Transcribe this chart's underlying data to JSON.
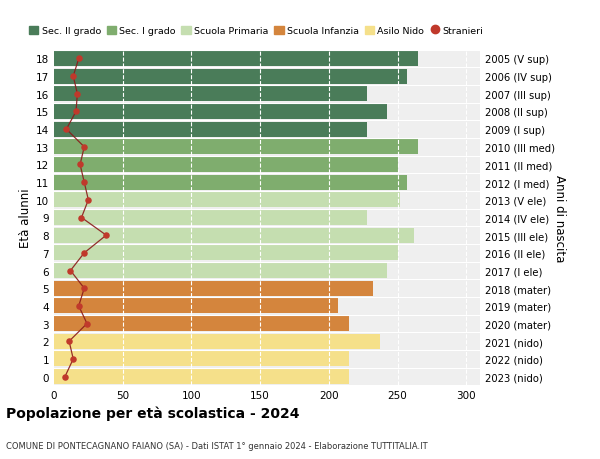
{
  "ages": [
    18,
    17,
    16,
    15,
    14,
    13,
    12,
    11,
    10,
    9,
    8,
    7,
    6,
    5,
    4,
    3,
    2,
    1,
    0
  ],
  "right_labels": [
    "2005 (V sup)",
    "2006 (IV sup)",
    "2007 (III sup)",
    "2008 (II sup)",
    "2009 (I sup)",
    "2010 (III med)",
    "2011 (II med)",
    "2012 (I med)",
    "2013 (V ele)",
    "2014 (IV ele)",
    "2015 (III ele)",
    "2016 (II ele)",
    "2017 (I ele)",
    "2018 (mater)",
    "2019 (mater)",
    "2020 (mater)",
    "2021 (nido)",
    "2022 (nido)",
    "2023 (nido)"
  ],
  "bar_values": [
    265,
    257,
    228,
    242,
    228,
    265,
    250,
    257,
    252,
    228,
    262,
    250,
    242,
    232,
    207,
    215,
    237,
    215,
    215
  ],
  "bar_colors": [
    "#4a7c59",
    "#4a7c59",
    "#4a7c59",
    "#4a7c59",
    "#4a7c59",
    "#7fad6e",
    "#7fad6e",
    "#7fad6e",
    "#c5deb0",
    "#c5deb0",
    "#c5deb0",
    "#c5deb0",
    "#c5deb0",
    "#d4853d",
    "#d4853d",
    "#d4853d",
    "#f5e08a",
    "#f5e08a",
    "#f5e08a"
  ],
  "stranieri_values": [
    18,
    14,
    17,
    16,
    9,
    22,
    19,
    22,
    25,
    20,
    38,
    22,
    12,
    22,
    18,
    24,
    11,
    14,
    8
  ],
  "legend_labels": [
    "Sec. II grado",
    "Sec. I grado",
    "Scuola Primaria",
    "Scuola Infanzia",
    "Asilo Nido",
    "Stranieri"
  ],
  "legend_colors": [
    "#4a7c59",
    "#7fad6e",
    "#c5deb0",
    "#d4853d",
    "#f5e08a",
    "#c0392b"
  ],
  "title": "Popolazione per età scolastica - 2024",
  "subtitle": "COMUNE DI PONTECAGNANO FAIANO (SA) - Dati ISTAT 1° gennaio 2024 - Elaborazione TUTTITALIA.IT",
  "ylabel_left": "Età alunni",
  "ylabel_right": "Anni di nascita",
  "xlim": [
    0,
    310
  ],
  "xticks": [
    0,
    50,
    100,
    150,
    200,
    250,
    300
  ],
  "background_color": "#ffffff",
  "plot_bg_color": "#efefef"
}
